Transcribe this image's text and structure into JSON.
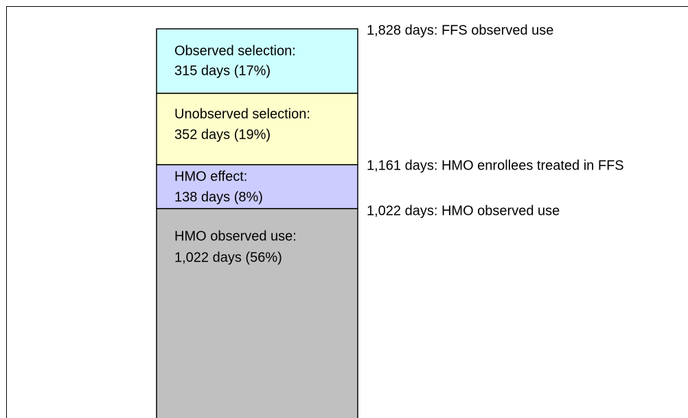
{
  "segments": [
    {
      "lines": [
        "Observed selection:",
        "315 days (17%)"
      ]
    },
    {
      "lines": [
        "Unobserved selection:",
        "352 days (19%)"
      ]
    },
    {
      "lines": [
        "HMO effect:",
        "138 days (8%)"
      ]
    },
    {
      "lines": [
        "HMO observed use:",
        "1,022 days (56%)"
      ]
    }
  ],
  "annotations": [
    "1,828 days: FFS observed use",
    "1,161 days: HMO enrollees treated in FFS",
    "1,022 days: HMO observed use"
  ]
}
